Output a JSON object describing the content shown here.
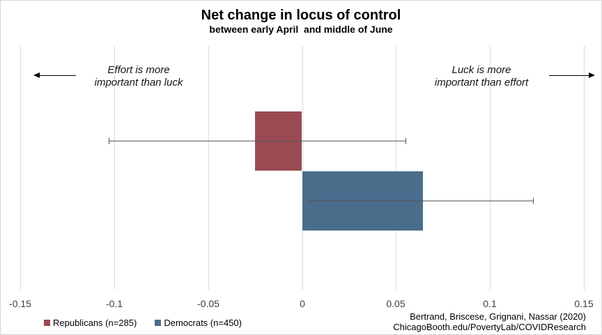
{
  "title": "Net change in locus of control",
  "subtitle": "between early April  and middle of June",
  "annotations": {
    "left": {
      "line1": "Effort is more",
      "line2": "important than luck"
    },
    "right": {
      "line1": "Luck is more",
      "line2": "important than effort"
    }
  },
  "footer": {
    "line1": "Bertrand, Briscese, Grignani, Nassar (2020)",
    "line2": "ChicagoBooth.edu/PovertyLab/COVIDResearch"
  },
  "chart_data": {
    "type": "bar",
    "orientation": "horizontal",
    "title": "Net change in locus of control",
    "subtitle": "between early April and middle of June",
    "categories": [
      "Republicans (n=285)",
      "Democrats (n=450)"
    ],
    "series": [
      {
        "name": "Republicans (n=285)",
        "slug": "republicans",
        "value": -0.025,
        "ci": [
          -0.103,
          0.055
        ],
        "color": "#9a4a52"
      },
      {
        "name": "Democrats (n=450)",
        "slug": "democrats",
        "value": 0.064,
        "ci": [
          0.004,
          0.123
        ],
        "color": "#4a6d8c"
      }
    ],
    "xlim": [
      -0.15,
      0.15
    ],
    "x_ticks": [
      -0.15,
      -0.1,
      -0.05,
      0,
      0.05,
      0.1,
      0.15
    ],
    "x_tick_labels": [
      "-0.15",
      "-0.1",
      "-0.05",
      "0",
      "0.05",
      "0.1",
      "0.15"
    ],
    "grid": "vertical",
    "gridline_color": "#d9d9d9",
    "error_bar_color": "#595959",
    "legend_position": "bottom-left",
    "annotation_left": "Effort is more important than luck",
    "annotation_right": "Luck is more important than effort"
  }
}
